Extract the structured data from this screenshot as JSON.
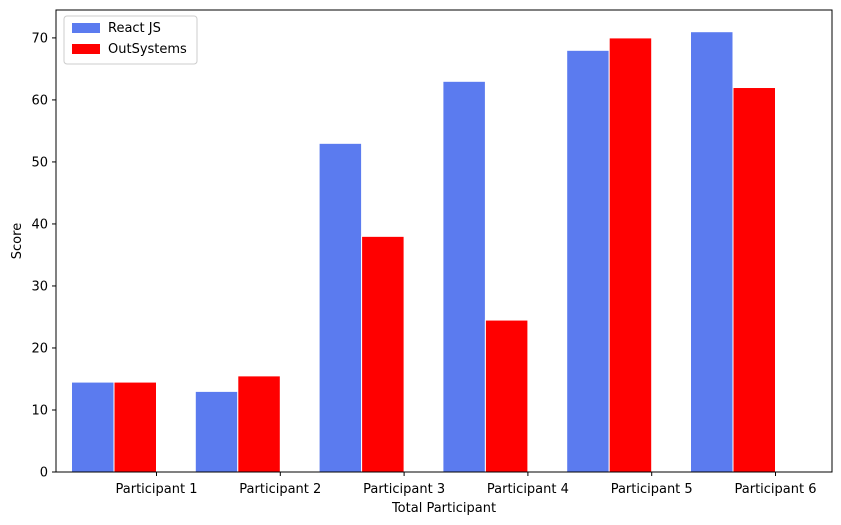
{
  "chart_data": {
    "type": "bar",
    "title": "",
    "xlabel": "Total Participant",
    "ylabel": "Score",
    "ylim": [
      0,
      74.5
    ],
    "yticks": [
      0,
      10,
      20,
      30,
      40,
      50,
      60,
      70
    ],
    "categories": [
      "Participant 1",
      "Participant 2",
      "Participant 3",
      "Participant 4",
      "Participant 5",
      "Participant 6"
    ],
    "series": [
      {
        "name": "React JS",
        "color": "#5b7bef",
        "values": [
          14.5,
          13,
          53,
          63,
          68,
          71
        ]
      },
      {
        "name": "OutSystems",
        "color": "#ff0000",
        "values": [
          14.5,
          15.5,
          38,
          24.5,
          70,
          62
        ]
      }
    ],
    "legend": {
      "placement": "top-left"
    },
    "grid": false
  }
}
